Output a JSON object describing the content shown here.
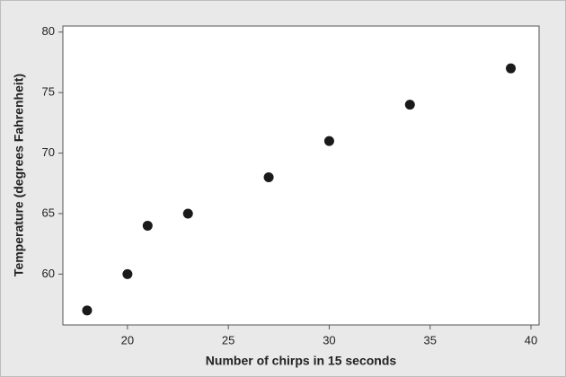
{
  "chart_data": {
    "type": "scatter",
    "x_label": "Number of chirps in 15 seconds",
    "y_label": "Temperature (degrees Fahrenheit)",
    "x": [
      18,
      20,
      21,
      23,
      27,
      30,
      34,
      39
    ],
    "values": [
      57,
      60,
      64,
      65,
      68,
      71,
      74,
      77
    ],
    "color": "#1a1a1a",
    "xlim": [
      16.8,
      40.4
    ],
    "xticks": [
      20,
      25,
      30,
      35,
      40
    ],
    "ylim": [
      55.8,
      80.5
    ],
    "yticks": [
      60,
      65,
      70,
      75,
      80
    ],
    "grid": false
  }
}
